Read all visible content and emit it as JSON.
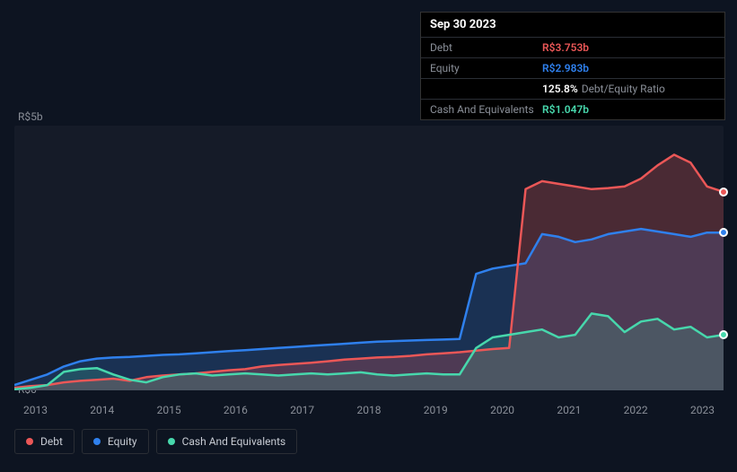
{
  "tooltip": {
    "date": "Sep 30 2023",
    "rows": [
      {
        "label": "Debt",
        "value": "R$3.753b",
        "color": "#eb5757"
      },
      {
        "label": "Equity",
        "value": "R$2.983b",
        "color": "#2f80ed"
      },
      {
        "label": "",
        "value": "125.8%",
        "sub": "Debt/Equity Ratio",
        "color": "#ffffff"
      },
      {
        "label": "Cash And Equivalents",
        "value": "R$1.047b",
        "color": "#47d7ac"
      }
    ]
  },
  "chart": {
    "ylabels": [
      {
        "text": "R$5b",
        "y": 0
      },
      {
        "text": "R$0",
        "y": 1
      }
    ],
    "xlabels": [
      "2013",
      "2014",
      "2015",
      "2016",
      "2017",
      "2018",
      "2019",
      "2020",
      "2021",
      "2022",
      "2023"
    ],
    "ymax": 5.0,
    "ymin": 0,
    "background": "#151b28",
    "series": {
      "debt": {
        "color": "#eb5757",
        "fillOpacity": 0.25,
        "values": [
          0.05,
          0.08,
          0.1,
          0.15,
          0.18,
          0.2,
          0.22,
          0.18,
          0.25,
          0.28,
          0.3,
          0.32,
          0.35,
          0.38,
          0.4,
          0.45,
          0.48,
          0.5,
          0.52,
          0.55,
          0.58,
          0.6,
          0.62,
          0.63,
          0.65,
          0.68,
          0.7,
          0.72,
          0.75,
          0.78,
          0.8,
          3.8,
          3.95,
          3.9,
          3.85,
          3.8,
          3.82,
          3.85,
          4.0,
          4.25,
          4.45,
          4.3,
          3.85,
          3.75
        ]
      },
      "equity": {
        "color": "#2f80ed",
        "fillOpacity": 0.22,
        "values": [
          0.1,
          0.2,
          0.3,
          0.45,
          0.55,
          0.6,
          0.62,
          0.63,
          0.65,
          0.67,
          0.68,
          0.7,
          0.72,
          0.74,
          0.76,
          0.78,
          0.8,
          0.82,
          0.84,
          0.86,
          0.88,
          0.9,
          0.92,
          0.93,
          0.94,
          0.95,
          0.96,
          0.97,
          2.2,
          2.3,
          2.35,
          2.4,
          2.95,
          2.9,
          2.8,
          2.85,
          2.95,
          3.0,
          3.05,
          3.0,
          2.95,
          2.9,
          2.98,
          2.98
        ]
      },
      "cash": {
        "color": "#47d7ac",
        "fillOpacity": 0.18,
        "values": [
          0.02,
          0.05,
          0.1,
          0.35,
          0.4,
          0.42,
          0.3,
          0.2,
          0.15,
          0.25,
          0.3,
          0.32,
          0.28,
          0.3,
          0.32,
          0.3,
          0.28,
          0.3,
          0.32,
          0.3,
          0.32,
          0.34,
          0.3,
          0.28,
          0.3,
          0.32,
          0.3,
          0.3,
          0.8,
          1.0,
          1.05,
          1.1,
          1.15,
          1.0,
          1.05,
          1.45,
          1.4,
          1.1,
          1.3,
          1.35,
          1.15,
          1.2,
          1.0,
          1.05
        ]
      }
    }
  },
  "legend": [
    {
      "label": "Debt",
      "color": "#eb5757"
    },
    {
      "label": "Equity",
      "color": "#2f80ed"
    },
    {
      "label": "Cash And Equivalents",
      "color": "#47d7ac"
    }
  ]
}
